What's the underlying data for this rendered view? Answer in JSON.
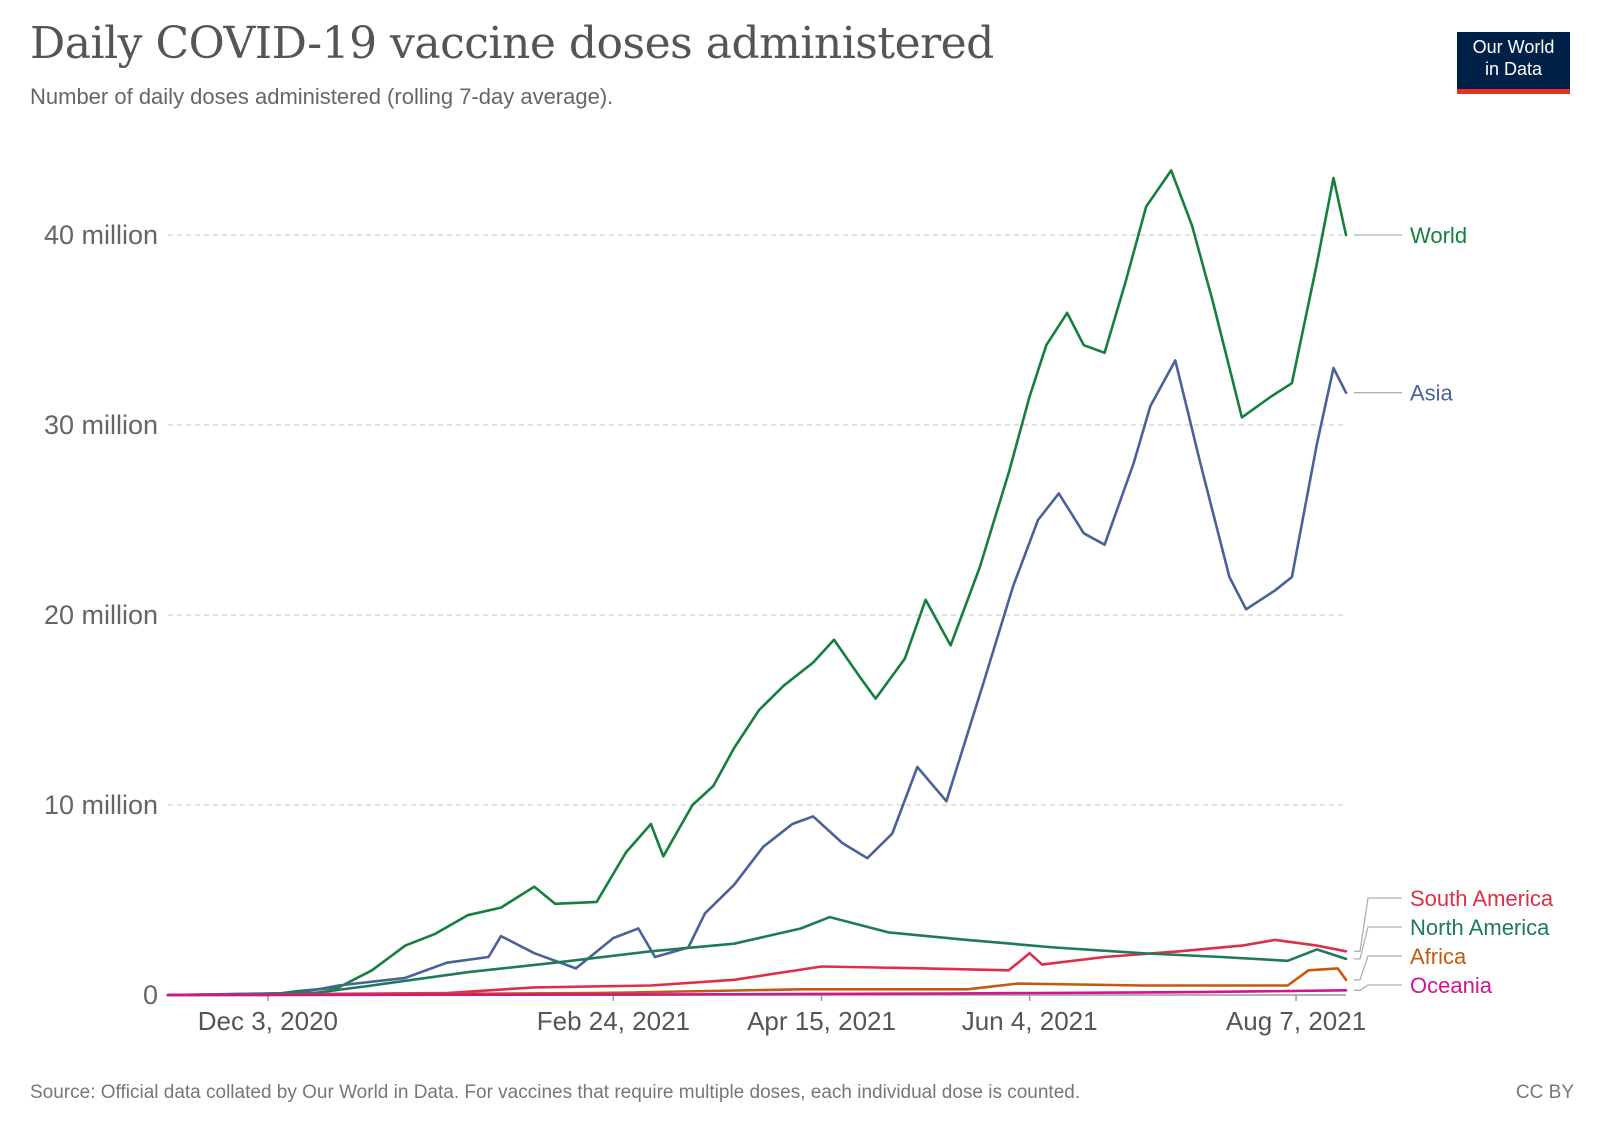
{
  "header": {
    "title": "Daily COVID-19 vaccine doses administered",
    "subtitle": "Number of daily doses administered (rolling 7-day average).",
    "logo_line1": "Our World",
    "logo_line2": "in Data"
  },
  "footer": {
    "source": "Source: Official data collated by Our World in Data. For vaccines that require multiple doses, each individual dose is counted.",
    "license": "CC BY"
  },
  "colors": {
    "World": "#15803d",
    "Asia": "#4a6298",
    "South America": "#dc2f48",
    "North America": "#1f7a5a",
    "Africa": "#c45a0e",
    "Oceania": "#d0158f",
    "grid": "#d7d7d7",
    "axis": "#999999"
  },
  "chart_data": {
    "type": "line",
    "title": "Daily COVID-19 vaccine doses administered",
    "subtitle": "Number of daily doses administered (rolling 7-day average).",
    "xlabel": "",
    "ylabel": "",
    "x_range": [
      "2020-11-09",
      "2021-08-19"
    ],
    "ylim": [
      0,
      45000000
    ],
    "y_ticks": [
      {
        "value": 0,
        "label": "0"
      },
      {
        "value": 10000000,
        "label": "10 million"
      },
      {
        "value": 20000000,
        "label": "20 million"
      },
      {
        "value": 30000000,
        "label": "30 million"
      },
      {
        "value": 40000000,
        "label": "40 million"
      }
    ],
    "x_ticks": [
      {
        "date": "2020-12-03",
        "label": "Dec 3, 2020"
      },
      {
        "date": "2021-02-24",
        "label": "Feb 24, 2021"
      },
      {
        "date": "2021-04-15",
        "label": "Apr 15, 2021"
      },
      {
        "date": "2021-06-04",
        "label": "Jun 4, 2021"
      },
      {
        "date": "2021-08-07",
        "label": "Aug 7, 2021"
      }
    ],
    "grid": "horizontal dashed",
    "legend": "line-end labels on the right",
    "series": [
      {
        "name": "World",
        "points": [
          [
            "2020-11-09",
            0
          ],
          [
            "2020-12-03",
            0
          ],
          [
            "2020-12-10",
            200000
          ],
          [
            "2020-12-20",
            400000
          ],
          [
            "2020-12-28",
            1300000
          ],
          [
            "2021-01-05",
            2600000
          ],
          [
            "2021-01-12",
            3200000
          ],
          [
            "2021-01-20",
            4200000
          ],
          [
            "2021-01-28",
            4600000
          ],
          [
            "2021-02-05",
            5700000
          ],
          [
            "2021-02-10",
            4800000
          ],
          [
            "2021-02-20",
            4900000
          ],
          [
            "2021-02-27",
            7500000
          ],
          [
            "2021-03-05",
            9000000
          ],
          [
            "2021-03-08",
            7300000
          ],
          [
            "2021-03-15",
            10000000
          ],
          [
            "2021-03-20",
            11000000
          ],
          [
            "2021-03-25",
            13000000
          ],
          [
            "2021-03-31",
            15000000
          ],
          [
            "2021-04-06",
            16300000
          ],
          [
            "2021-04-13",
            17500000
          ],
          [
            "2021-04-18",
            18700000
          ],
          [
            "2021-04-24",
            16800000
          ],
          [
            "2021-04-28",
            15600000
          ],
          [
            "2021-05-05",
            17700000
          ],
          [
            "2021-05-10",
            20800000
          ],
          [
            "2021-05-16",
            18400000
          ],
          [
            "2021-05-23",
            22500000
          ],
          [
            "2021-05-30",
            27500000
          ],
          [
            "2021-06-04",
            31500000
          ],
          [
            "2021-06-08",
            34200000
          ],
          [
            "2021-06-13",
            35900000
          ],
          [
            "2021-06-17",
            34200000
          ],
          [
            "2021-06-22",
            33800000
          ],
          [
            "2021-06-27",
            37500000
          ],
          [
            "2021-07-02",
            41500000
          ],
          [
            "2021-07-08",
            43400000
          ],
          [
            "2021-07-13",
            40500000
          ],
          [
            "2021-07-18",
            36500000
          ],
          [
            "2021-07-25",
            30400000
          ],
          [
            "2021-08-01",
            31500000
          ],
          [
            "2021-08-06",
            32200000
          ],
          [
            "2021-08-12",
            38500000
          ],
          [
            "2021-08-16",
            43000000
          ],
          [
            "2021-08-19",
            40000000
          ]
        ]
      },
      {
        "name": "Asia",
        "points": [
          [
            "2020-11-09",
            0
          ],
          [
            "2020-12-10",
            100000
          ],
          [
            "2020-12-20",
            500000
          ],
          [
            "2021-01-05",
            900000
          ],
          [
            "2021-01-15",
            1700000
          ],
          [
            "2021-01-25",
            2000000
          ],
          [
            "2021-01-28",
            3100000
          ],
          [
            "2021-02-05",
            2200000
          ],
          [
            "2021-02-15",
            1400000
          ],
          [
            "2021-02-24",
            3000000
          ],
          [
            "2021-03-02",
            3500000
          ],
          [
            "2021-03-06",
            2000000
          ],
          [
            "2021-03-14",
            2500000
          ],
          [
            "2021-03-18",
            4300000
          ],
          [
            "2021-03-25",
            5800000
          ],
          [
            "2021-04-01",
            7800000
          ],
          [
            "2021-04-08",
            9000000
          ],
          [
            "2021-04-13",
            9400000
          ],
          [
            "2021-04-20",
            8000000
          ],
          [
            "2021-04-26",
            7200000
          ],
          [
            "2021-05-02",
            8500000
          ],
          [
            "2021-05-08",
            12000000
          ],
          [
            "2021-05-15",
            10200000
          ],
          [
            "2021-05-24",
            16500000
          ],
          [
            "2021-05-31",
            21500000
          ],
          [
            "2021-06-06",
            25000000
          ],
          [
            "2021-06-11",
            26400000
          ],
          [
            "2021-06-17",
            24300000
          ],
          [
            "2021-06-22",
            23700000
          ],
          [
            "2021-06-29",
            28000000
          ],
          [
            "2021-07-03",
            31000000
          ],
          [
            "2021-07-09",
            33400000
          ],
          [
            "2021-07-15",
            28000000
          ],
          [
            "2021-07-22",
            22000000
          ],
          [
            "2021-07-26",
            20300000
          ],
          [
            "2021-08-02",
            21300000
          ],
          [
            "2021-08-06",
            22000000
          ],
          [
            "2021-08-12",
            29000000
          ],
          [
            "2021-08-16",
            33000000
          ],
          [
            "2021-08-19",
            31700000
          ]
        ]
      },
      {
        "name": "South America",
        "points": [
          [
            "2020-11-09",
            0
          ],
          [
            "2021-01-15",
            100000
          ],
          [
            "2021-02-05",
            400000
          ],
          [
            "2021-03-05",
            500000
          ],
          [
            "2021-03-25",
            800000
          ],
          [
            "2021-04-15",
            1500000
          ],
          [
            "2021-05-10",
            1400000
          ],
          [
            "2021-05-30",
            1300000
          ],
          [
            "2021-06-04",
            2200000
          ],
          [
            "2021-06-07",
            1600000
          ],
          [
            "2021-06-22",
            2000000
          ],
          [
            "2021-07-10",
            2300000
          ],
          [
            "2021-07-25",
            2600000
          ],
          [
            "2021-08-02",
            2900000
          ],
          [
            "2021-08-12",
            2600000
          ],
          [
            "2021-08-19",
            2300000
          ]
        ]
      },
      {
        "name": "North America",
        "points": [
          [
            "2020-11-09",
            0
          ],
          [
            "2020-12-14",
            100000
          ],
          [
            "2020-12-28",
            500000
          ],
          [
            "2021-01-20",
            1200000
          ],
          [
            "2021-02-10",
            1700000
          ],
          [
            "2021-03-05",
            2300000
          ],
          [
            "2021-03-25",
            2700000
          ],
          [
            "2021-04-10",
            3500000
          ],
          [
            "2021-04-17",
            4100000
          ],
          [
            "2021-05-01",
            3300000
          ],
          [
            "2021-05-20",
            2900000
          ],
          [
            "2021-06-10",
            2500000
          ],
          [
            "2021-07-01",
            2200000
          ],
          [
            "2021-07-20",
            2000000
          ],
          [
            "2021-08-05",
            1800000
          ],
          [
            "2021-08-12",
            2400000
          ],
          [
            "2021-08-19",
            1900000
          ]
        ]
      },
      {
        "name": "Africa",
        "points": [
          [
            "2020-11-09",
            0
          ],
          [
            "2021-02-20",
            100000
          ],
          [
            "2021-04-10",
            300000
          ],
          [
            "2021-05-20",
            300000
          ],
          [
            "2021-06-01",
            600000
          ],
          [
            "2021-07-01",
            500000
          ],
          [
            "2021-08-05",
            500000
          ],
          [
            "2021-08-10",
            1300000
          ],
          [
            "2021-08-17",
            1400000
          ],
          [
            "2021-08-19",
            800000
          ]
        ]
      },
      {
        "name": "Oceania",
        "points": [
          [
            "2020-11-09",
            0
          ],
          [
            "2021-03-01",
            20000
          ],
          [
            "2021-05-15",
            80000
          ],
          [
            "2021-07-15",
            150000
          ],
          [
            "2021-08-19",
            250000
          ]
        ]
      }
    ]
  }
}
